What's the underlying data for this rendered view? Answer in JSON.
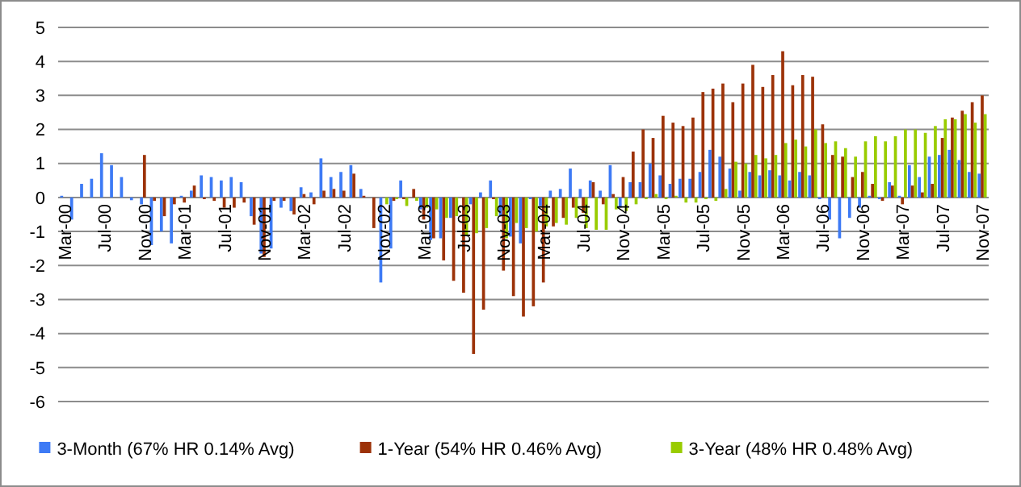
{
  "chart_data": {
    "type": "bar",
    "categories": [
      "Mar-00",
      null,
      null,
      null,
      "Jul-00",
      null,
      null,
      null,
      "Nov-00",
      null,
      null,
      null,
      "Mar-01",
      null,
      null,
      null,
      "Jul-01",
      null,
      null,
      null,
      "Nov-01",
      null,
      null,
      null,
      "Mar-02",
      null,
      null,
      null,
      "Jul-02",
      null,
      null,
      null,
      "Nov-02",
      null,
      null,
      null,
      "Mar-03",
      null,
      null,
      null,
      "Jul-03",
      null,
      null,
      null,
      "Nov-03",
      null,
      null,
      null,
      "Mar-04",
      null,
      null,
      null,
      "Jul-04",
      null,
      null,
      null,
      "Nov-04",
      null,
      null,
      null,
      "Mar-05",
      null,
      null,
      null,
      "Jul-05",
      null,
      null,
      null,
      "Nov-05",
      null,
      null,
      null,
      "Mar-06",
      null,
      null,
      null,
      "Jul-06",
      null,
      null,
      null,
      "Nov-06",
      null,
      null,
      null,
      "Mar-07",
      null,
      null,
      null,
      "Jul-07",
      null,
      null,
      null,
      "Nov-07"
    ],
    "series": [
      {
        "name": "3-Month (67% HR 0.14% Avg)",
        "color": "#3d7af5",
        "values": [
          0.05,
          -0.65,
          0.4,
          0.55,
          1.3,
          0.95,
          0.6,
          -0.08,
          -0.2,
          -1.4,
          -1.0,
          -1.35,
          0.05,
          0.2,
          0.65,
          0.6,
          0.5,
          0.6,
          0.45,
          -0.55,
          -1.65,
          -1.5,
          -0.3,
          -0.4,
          0.3,
          0.15,
          1.15,
          0.6,
          0.75,
          0.95,
          0.25,
          0,
          -2.5,
          -1.5,
          0.5,
          0,
          -0.35,
          -1.25,
          -1.2,
          -0.6,
          0,
          -0.2,
          0.15,
          0.5,
          -0.55,
          -1.15,
          -1.35,
          -0.05,
          -0.25,
          0.2,
          0.25,
          0.85,
          0.25,
          0.5,
          0.2,
          0.95,
          -0.3,
          0.45,
          0.45,
          1.0,
          0.65,
          0.4,
          0.55,
          0.55,
          0.75,
          1.4,
          1.2,
          0.85,
          0.2,
          0.75,
          0.65,
          0.8,
          0.65,
          0.5,
          0.75,
          0.65,
          -0.05,
          -0.65,
          -1.2,
          -0.6,
          -0.3,
          0.05,
          -0.05,
          0.45,
          0.05,
          0.95,
          0.6,
          1.2,
          1.25,
          1.4,
          1.1,
          0.75,
          0.7
        ]
      },
      {
        "name": "1-Year (54% HR 0.46% Avg)",
        "color": "#9c3208",
        "values": [
          null,
          null,
          null,
          null,
          null,
          null,
          null,
          null,
          1.25,
          -0.1,
          -0.55,
          -0.2,
          -0.15,
          0.35,
          -0.05,
          -0.1,
          -0.3,
          -0.3,
          -0.15,
          -0.8,
          -1.75,
          -0.1,
          -0.1,
          -0.5,
          0.1,
          -0.2,
          0.2,
          0.25,
          0.2,
          0.7,
          0.05,
          -0.9,
          0,
          -0.1,
          -0.05,
          0.25,
          -0.65,
          -1.2,
          -1.85,
          -2.45,
          -2.8,
          -4.6,
          -3.3,
          -0.05,
          -2.15,
          -2.9,
          -3.5,
          -3.2,
          -2.5,
          -0.85,
          -0.6,
          -0.3,
          -0.45,
          0.45,
          -0.2,
          0.1,
          0.6,
          1.35,
          2.0,
          1.75,
          2.4,
          2.2,
          2.1,
          2.35,
          3.1,
          3.2,
          3.35,
          2.8,
          3.35,
          3.9,
          3.25,
          3.6,
          4.3,
          3.3,
          3.6,
          3.55,
          2.15,
          1.25,
          1.2,
          0.6,
          0.75,
          0.4,
          -0.1,
          0.35,
          -0.2,
          0.35,
          0.15,
          0.4,
          1.75,
          2.35,
          2.55,
          2.8,
          3.0
        ]
      },
      {
        "name": "3-Year (48% HR 0.48% Avg)",
        "color": "#99cc00",
        "values": [
          null,
          null,
          null,
          null,
          null,
          null,
          null,
          null,
          null,
          null,
          null,
          null,
          null,
          null,
          null,
          null,
          null,
          null,
          null,
          null,
          null,
          null,
          null,
          null,
          null,
          null,
          null,
          null,
          null,
          null,
          null,
          null,
          -0.2,
          -0.05,
          -0.25,
          -0.1,
          -0.3,
          -0.35,
          -0.6,
          -0.55,
          -1.1,
          -1.05,
          -0.9,
          -0.55,
          -1.2,
          -0.75,
          -0.9,
          -1.0,
          -0.85,
          -0.75,
          -0.8,
          -0.6,
          -0.9,
          -0.95,
          -0.95,
          -0.35,
          -0.4,
          -0.2,
          -0.05,
          0.1,
          -0.05,
          0.05,
          -0.15,
          -0.15,
          -0.05,
          -0.1,
          0.25,
          1.05,
          1.0,
          1.25,
          1.15,
          1.25,
          1.6,
          1.7,
          1.5,
          2.0,
          1.6,
          1.65,
          1.45,
          1.2,
          1.65,
          1.8,
          1.65,
          1.8,
          2.0,
          2.0,
          1.9,
          2.1,
          2.3,
          2.3,
          2.45,
          2.2,
          2.45
        ]
      }
    ],
    "ylim": [
      -6,
      5
    ],
    "yticks": [
      -6,
      -5,
      -4,
      -3,
      -2,
      -1,
      0,
      1,
      2,
      3,
      4,
      5
    ],
    "grid": "y",
    "legend": "bottom"
  }
}
